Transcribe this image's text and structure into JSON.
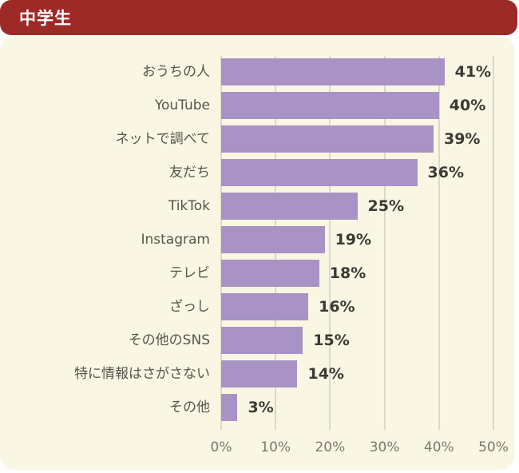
{
  "header": {
    "title": "中学生"
  },
  "colors": {
    "header_bg": "#9e2a27",
    "header_text": "#ffffff",
    "panel_bg": "#faf6e4",
    "bar": "#a893c4",
    "grid": "#dbd9cb",
    "category_label": "#57544c",
    "value_label": "#3b3a34",
    "axis_label": "#7b786e"
  },
  "chart_data": {
    "type": "bar",
    "orientation": "horizontal",
    "title": "中学生",
    "categories": [
      "おうちの人",
      "YouTube",
      "ネットで調べて",
      "友だち",
      "TikTok",
      "Instagram",
      "テレビ",
      "ざっし",
      "その他のSNS",
      "特に情報はさがさない",
      "その他"
    ],
    "values": [
      41,
      40,
      39,
      36,
      25,
      19,
      18,
      16,
      15,
      14,
      3
    ],
    "value_labels": [
      "41%",
      "40%",
      "39%",
      "36%",
      "25%",
      "19%",
      "18%",
      "16%",
      "15%",
      "14%",
      "3%"
    ],
    "unit": "%",
    "xlabel": "",
    "ylabel": "",
    "xlim": [
      0,
      50
    ],
    "xtick_step": 10,
    "xtick_labels": [
      "0%",
      "10%",
      "20%",
      "30%",
      "40%",
      "50%"
    ],
    "grid": true,
    "legend": false
  }
}
